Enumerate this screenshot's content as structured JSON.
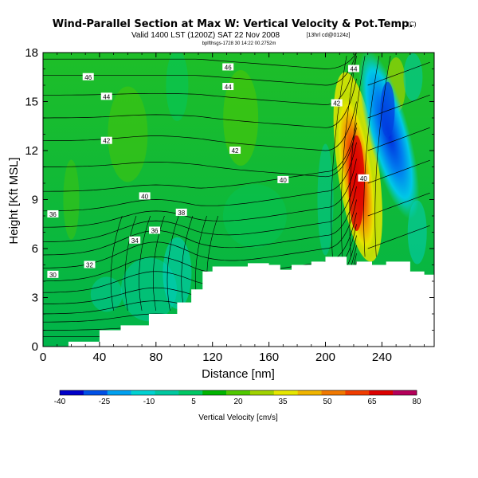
{
  "chart_data": {
    "type": "heatmap",
    "title": "Wind-Parallel Section at Max W: Vertical Velocity & Pot.Temp.",
    "title_mark": "(C)",
    "subtitle": "Valid 1400 LST (1200Z) SAT 22 Nov 2008",
    "subtitle_small": "[13hrl cd@0124z]",
    "subtitle_line2": "bplfthsgs-1728 30 14:22 00.2752m",
    "xlabel": "Distance [nm]",
    "ylabel": "Height [Kft MSL]",
    "xlim": [
      0,
      277
    ],
    "ylim": [
      0,
      18
    ],
    "xticks": [
      0,
      40,
      80,
      120,
      160,
      200,
      240
    ],
    "yticks": [
      0,
      3,
      6,
      9,
      12,
      15,
      18
    ],
    "colorbar": {
      "label": "Vertical Velocity [cm/s]",
      "tick_labels": [
        "-40",
        "-25",
        "-10",
        "5",
        "20",
        "35",
        "50",
        "65",
        "80"
      ],
      "colors": [
        "#0000c8",
        "#0050e6",
        "#00a0f0",
        "#00d2d2",
        "#00c8a0",
        "#00c864",
        "#00b400",
        "#50c800",
        "#a0d200",
        "#e6e600",
        "#f0b400",
        "#f07800",
        "#f03c00",
        "#dc0000",
        "#b4005a"
      ]
    },
    "theta_contour_labels": [
      {
        "text": "30",
        "x": 7,
        "y": 4.4
      },
      {
        "text": "32",
        "x": 33,
        "y": 5.0
      },
      {
        "text": "34",
        "x": 65,
        "y": 6.5
      },
      {
        "text": "36",
        "x": 79,
        "y": 7.1
      },
      {
        "text": "36",
        "x": 7,
        "y": 8.1
      },
      {
        "text": "38",
        "x": 98,
        "y": 8.2
      },
      {
        "text": "40",
        "x": 72,
        "y": 9.2
      },
      {
        "text": "40",
        "x": 170,
        "y": 10.2
      },
      {
        "text": "40",
        "x": 227,
        "y": 10.3
      },
      {
        "text": "42",
        "x": 45,
        "y": 12.6
      },
      {
        "text": "42",
        "x": 136,
        "y": 12.0
      },
      {
        "text": "42",
        "x": 208,
        "y": 14.9
      },
      {
        "text": "44",
        "x": 45,
        "y": 15.3
      },
      {
        "text": "44",
        "x": 131,
        "y": 15.9
      },
      {
        "text": "44",
        "x": 220,
        "y": 17.0
      },
      {
        "text": "46",
        "x": 32,
        "y": 16.5
      },
      {
        "text": "46",
        "x": 131,
        "y": 17.1
      }
    ],
    "terrain": [
      {
        "x": 0,
        "h": 0
      },
      {
        "x": 18,
        "h": 0
      },
      {
        "x": 18,
        "h": 0.3
      },
      {
        "x": 40,
        "h": 1.0
      },
      {
        "x": 55,
        "h": 1.3
      },
      {
        "x": 75,
        "h": 2.0
      },
      {
        "x": 95,
        "h": 2.7
      },
      {
        "x": 105,
        "h": 3.5
      },
      {
        "x": 113,
        "h": 4.6
      },
      {
        "x": 120,
        "h": 4.9
      },
      {
        "x": 145,
        "h": 5.1
      },
      {
        "x": 160,
        "h": 5.0
      },
      {
        "x": 168,
        "h": 4.7
      },
      {
        "x": 176,
        "h": 5.0
      },
      {
        "x": 190,
        "h": 5.2
      },
      {
        "x": 200,
        "h": 5.5
      },
      {
        "x": 210,
        "h": 5.5
      },
      {
        "x": 215,
        "h": 5.0
      },
      {
        "x": 222,
        "h": 5.2
      },
      {
        "x": 233,
        "h": 5.0
      },
      {
        "x": 243,
        "h": 5.2
      },
      {
        "x": 260,
        "h": 4.6
      },
      {
        "x": 270,
        "h": 4.4
      },
      {
        "x": 277,
        "h": 4.2
      }
    ],
    "velocity_features": [
      {
        "name": "updraft-core",
        "x": 222,
        "y": 10,
        "value": 65
      },
      {
        "name": "downdraft-core",
        "x": 245,
        "y": 14,
        "value": -25
      }
    ]
  }
}
